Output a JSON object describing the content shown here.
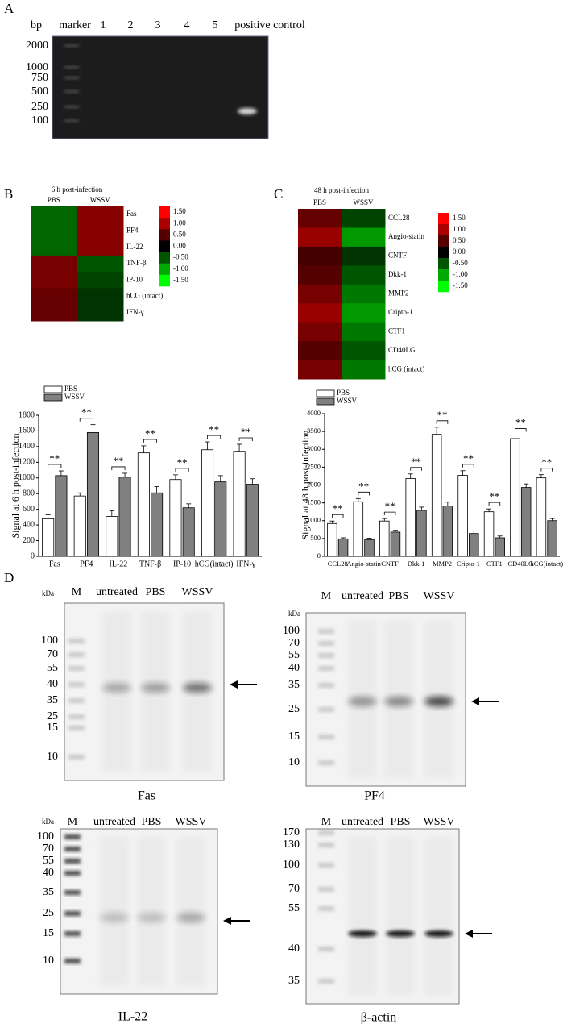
{
  "panel_labels": [
    "A",
    "B",
    "C",
    "D"
  ],
  "gel_a": {
    "header": [
      "bp",
      "marker",
      "1",
      "2",
      "3",
      "4",
      "5",
      "positive control"
    ],
    "size_labels": [
      "2000",
      "1000",
      "750",
      "500",
      "250",
      "100"
    ]
  },
  "chart_data": [
    {
      "type": "heatmap",
      "title": "6 h post-infection",
      "columns": [
        "PBS",
        "WSSV"
      ],
      "rows": [
        "Fas",
        "PF4",
        "IL-22",
        "TNF-β",
        "IP-10",
        "hCG (intact)",
        "IFN-γ"
      ],
      "values": [
        [
          -0.6,
          0.8
        ],
        [
          -0.6,
          0.8
        ],
        [
          -0.6,
          0.8
        ],
        [
          0.7,
          -0.5
        ],
        [
          0.7,
          -0.4
        ],
        [
          0.6,
          -0.3
        ],
        [
          0.6,
          -0.3
        ]
      ],
      "clim": [
        -1.5,
        1.5
      ],
      "colormap": [
        "#00ff00",
        "#000000",
        "#ff0000"
      ],
      "cticks": [
        {
          "value": 1.5,
          "label": "1.50"
        },
        {
          "value": 1,
          "label": "1.00"
        },
        {
          "value": 0.5,
          "label": "0.50"
        },
        {
          "value": 0,
          "label": "0.00"
        },
        {
          "value": -0.5,
          "label": "-0.50"
        },
        {
          "value": -1,
          "label": "-1.00"
        },
        {
          "value": -1.5,
          "label": "-1.50"
        }
      ]
    },
    {
      "type": "heatmap",
      "title": "48 h post-infection",
      "columns": [
        "PBS",
        "WSSV"
      ],
      "rows": [
        "CCL28",
        "Angio-statin",
        "CNTF",
        "Dkk-1",
        "MMP2",
        "Cripto-1",
        "CTF1",
        "CD40LG",
        "hCG (intact)"
      ],
      "values": [
        [
          0.6,
          -0.4
        ],
        [
          0.9,
          -0.9
        ],
        [
          0.4,
          -0.3
        ],
        [
          0.5,
          -0.5
        ],
        [
          0.7,
          -0.7
        ],
        [
          0.9,
          -0.9
        ],
        [
          0.7,
          -0.7
        ],
        [
          0.5,
          -0.5
        ],
        [
          0.7,
          -0.7
        ]
      ],
      "clim": [
        -1.5,
        1.5
      ],
      "colormap": [
        "#00ff00",
        "#000000",
        "#ff0000"
      ],
      "cticks": [
        {
          "value": 1.5,
          "label": "1.50"
        },
        {
          "value": 1,
          "label": "1.00"
        },
        {
          "value": 0.5,
          "label": "0.50"
        },
        {
          "value": 0,
          "label": "0.00"
        },
        {
          "value": -0.5,
          "label": "-0.50"
        },
        {
          "value": -1,
          "label": "-1.00"
        },
        {
          "value": -1.5,
          "label": "-1.50"
        }
      ]
    },
    {
      "type": "bar",
      "ylabel": "Signal at 6 h  post-infection",
      "categories": [
        "Fas",
        "PF4",
        "IL-22",
        "TNF-β",
        "IP-10",
        "hCG(intact)",
        "IFN-γ"
      ],
      "series": [
        {
          "name": "PBS",
          "color": "#ffffff",
          "values": [
            480,
            770,
            510,
            1320,
            980,
            1360,
            1340
          ],
          "errors": [
            50,
            40,
            70,
            90,
            60,
            100,
            90
          ]
        },
        {
          "name": "WSSV",
          "color": "#808080",
          "values": [
            1030,
            1580,
            1010,
            810,
            620,
            950,
            920
          ],
          "errors": [
            60,
            100,
            50,
            80,
            50,
            80,
            70
          ]
        }
      ],
      "annotations": [
        "**",
        "**",
        "**",
        "**",
        "**",
        "**",
        "**"
      ],
      "ylim": [
        0,
        1800
      ],
      "yticks": [
        0,
        200,
        400,
        600,
        800,
        1000,
        1200,
        1400,
        1600,
        1800
      ]
    },
    {
      "type": "bar",
      "ylabel": "Signal at 48 h post-infection",
      "categories": [
        "CCL28",
        "Angio-statin",
        "CNTF",
        "Dkk-1",
        "MMP2",
        "Cripto-1",
        "CTF1",
        "CD40LG",
        "hCG(intact)"
      ],
      "series": [
        {
          "name": "PBS",
          "color": "#ffffff",
          "values": [
            920,
            1530,
            990,
            2180,
            3420,
            2270,
            1250,
            3300,
            2200
          ],
          "errors": [
            70,
            90,
            70,
            130,
            200,
            130,
            80,
            100,
            90
          ]
        },
        {
          "name": "WSSV",
          "color": "#808080",
          "values": [
            490,
            470,
            680,
            1290,
            1410,
            640,
            520,
            1930,
            1000
          ],
          "errors": [
            30,
            40,
            50,
            90,
            110,
            70,
            50,
            100,
            60
          ]
        }
      ],
      "annotations": [
        "**",
        "**",
        "**",
        "**",
        "**",
        "**",
        "**",
        "**",
        "**"
      ],
      "ylim": [
        0,
        4000
      ],
      "yticks": [
        0,
        500,
        1000,
        1500,
        2000,
        2500,
        3000,
        3500,
        4000
      ]
    }
  ],
  "blots": [
    {
      "caption": "Fas",
      "unit": "kDa",
      "lanes": [
        "M",
        "untreated",
        "PBS",
        "WSSV"
      ],
      "markers": [
        "100",
        "70",
        "55",
        "40",
        "35",
        "25",
        "15",
        "10"
      ]
    },
    {
      "caption": "PF4",
      "unit": "kDa",
      "lanes": [
        "M",
        "untreated",
        "PBS",
        "WSSV"
      ],
      "markers": [
        "100",
        "70",
        "55",
        "40",
        "35",
        "25",
        "15",
        "10"
      ]
    },
    {
      "caption": "IL-22",
      "unit": "kDa",
      "lanes": [
        "M",
        "untreated",
        "PBS",
        "WSSV"
      ],
      "markers": [
        "100",
        "70",
        "55",
        "40",
        "35",
        "25",
        "15",
        "10"
      ]
    },
    {
      "caption": "β-actin",
      "lanes": [
        "M",
        "untreated",
        "PBS",
        "WSSV"
      ],
      "markers": [
        "170",
        "130",
        "100",
        "70",
        "55",
        "40",
        "35"
      ]
    }
  ]
}
